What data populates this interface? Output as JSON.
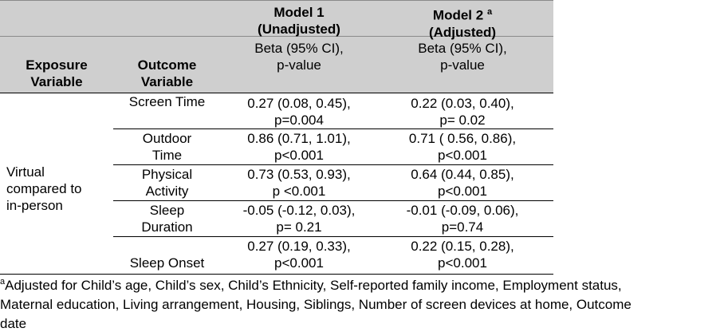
{
  "header": {
    "model1_title": "Model 1",
    "model1_sub": "(Unadjusted)",
    "model2_title": "Model 2",
    "model2_sup": "a",
    "model2_sub": "(Adjusted)",
    "stat_line1": "Beta (95% CI),",
    "stat_line2": "p-value",
    "exposure_line1": "Exposure",
    "exposure_line2": "Variable",
    "outcome_line1": "Outcome",
    "outcome_line2": "Variable"
  },
  "exposure": [
    "Virtual",
    "compared to",
    "in-person"
  ],
  "rows": [
    {
      "outcome": [
        "Screen Time"
      ],
      "m1": [
        "0.27 (0.08, 0.45),",
        "p=0.004"
      ],
      "m2": [
        "0.22 (0.03, 0.40),",
        "p= 0.02"
      ]
    },
    {
      "outcome": [
        "Outdoor",
        "Time"
      ],
      "m1": [
        "0.86 (0.71, 1.01),",
        "p<0.001"
      ],
      "m2": [
        "0.71 ( 0.56, 0.86),",
        "p<0.001"
      ]
    },
    {
      "outcome": [
        "Physical",
        "Activity"
      ],
      "m1": [
        "0.73 (0.53, 0.93),",
        "p <0.001"
      ],
      "m2": [
        "0.64 (0.44,  0.85),",
        "p<0.001"
      ]
    },
    {
      "outcome": [
        "Sleep",
        "Duration"
      ],
      "m1": [
        "-0.05 (-0.12, 0.03),",
        "p= 0.21"
      ],
      "m2": [
        "-0.01 (-0.09,  0.06),",
        "p=0.74"
      ]
    },
    {
      "outcome": [
        "",
        "Sleep Onset"
      ],
      "m1": [
        "0.27 (0.19,  0.33),",
        "p<0.001"
      ],
      "m2": [
        "0.22 (0.15, 0.28),",
        "p<0.001"
      ]
    }
  ],
  "footnote": {
    "marker": "a",
    "line1": "Adjusted for Child’s age, Child’s sex, Child’s Ethnicity, Self-reported family income, Employment status,",
    "line2": "Maternal education, Living arrangement, Housing, Siblings, Number of screen devices at home, Outcome",
    "line3": "date"
  }
}
